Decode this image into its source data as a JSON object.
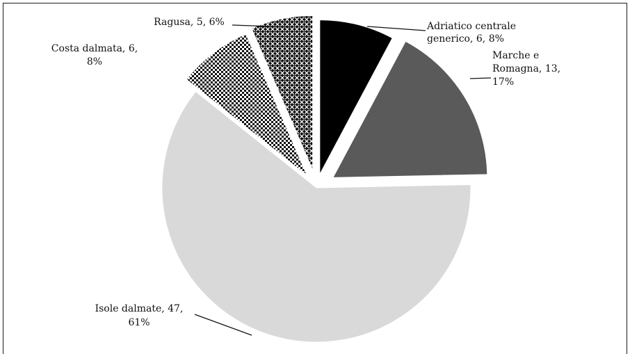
{
  "chart_data": {
    "type": "pie",
    "exploded": true,
    "slices": [
      {
        "name": "Adriatico centrale generico",
        "value": 6,
        "percent": "8%",
        "label_lines": [
          "Adriatico centrale",
          "generico, 6, 8%"
        ],
        "fill": "#000000",
        "pattern": "solid"
      },
      {
        "name": "Marche e Romagna",
        "value": 13,
        "percent": "17%",
        "label_lines": [
          "Marche e",
          "Romagna, 13,",
          "17%"
        ],
        "fill": "#5a5a5a",
        "pattern": "solid"
      },
      {
        "name": "Isole dalmate",
        "value": 47,
        "percent": "61%",
        "label_lines": [
          "Isole dalmate, 47,",
          "61%"
        ],
        "fill": "#d9d9d9",
        "pattern": "solid"
      },
      {
        "name": "Costa dalmata",
        "value": 6,
        "percent": "8%",
        "label_lines": [
          "Costa dalmata, 6,",
          "8%"
        ],
        "fill": "#000000",
        "pattern": "checker"
      },
      {
        "name": "Ragusa",
        "value": 5,
        "percent": "6%",
        "label_lines": [
          "Ragusa, 5, 6%"
        ],
        "fill": "#000000",
        "pattern": "crosshatch"
      }
    ],
    "colors": {
      "background": "#ffffff",
      "border": "#1a1a1a",
      "separator": "#ffffff"
    }
  }
}
